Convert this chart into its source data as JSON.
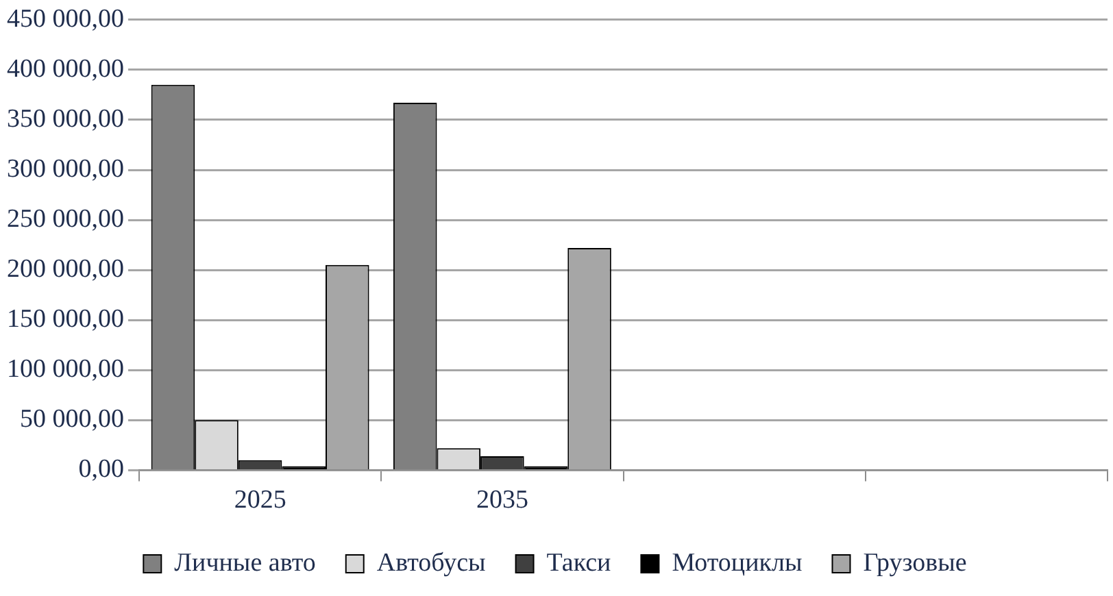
{
  "chart_data": {
    "type": "bar",
    "categories": [
      "2025",
      "2035",
      null,
      null
    ],
    "series": [
      {
        "name": "Личные авто",
        "color": "#808080",
        "values": [
          385000,
          367000,
          null,
          null
        ]
      },
      {
        "name": "Автобусы",
        "color": "#d9d9d9",
        "values": [
          50000,
          22000,
          null,
          null
        ]
      },
      {
        "name": "Такси",
        "color": "#404040",
        "values": [
          10000,
          14000,
          null,
          null
        ]
      },
      {
        "name": "Мотоциклы",
        "color": "#000000",
        "values": [
          4000,
          4000,
          null,
          null
        ]
      },
      {
        "name": "Грузовые",
        "color": "#a6a6a6",
        "values": [
          205000,
          222000,
          null,
          null
        ]
      }
    ],
    "ylim": [
      0,
      450000
    ],
    "yticks": [
      {
        "value": 0,
        "label": "0,00"
      },
      {
        "value": 50000,
        "label": "50 000,00"
      },
      {
        "value": 100000,
        "label": "100 000,00"
      },
      {
        "value": 150000,
        "label": "150 000,00"
      },
      {
        "value": 200000,
        "label": "200 000,00"
      },
      {
        "value": 250000,
        "label": "250 000,00"
      },
      {
        "value": 300000,
        "label": "300 000,00"
      },
      {
        "value": 350000,
        "label": "350 000,00"
      },
      {
        "value": 400000,
        "label": "400 000,00"
      },
      {
        "value": 450000,
        "label": "450 000,00"
      }
    ],
    "grid": "y",
    "legend": "bottom"
  }
}
